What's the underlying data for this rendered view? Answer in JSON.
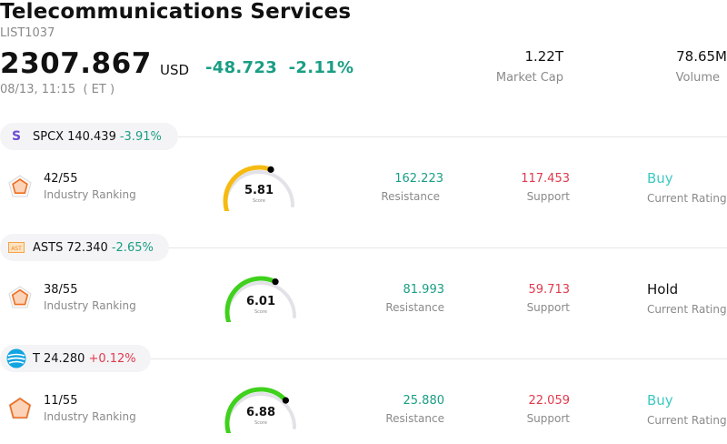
{
  "header": {
    "title": "Telecommunications Services",
    "code": "LIST1037",
    "price": "2307.867",
    "currency": "USD",
    "change": "-48.723",
    "change_pct": "-2.11%",
    "time": "08/13, 11:15  ( ET )",
    "market_cap_value": "1.22T",
    "market_cap_label": "Market Cap",
    "volume_value": "78.65M",
    "volume_label": "Volume"
  },
  "colors": {
    "down": "#1a9e84",
    "up": "#e03a4e",
    "buy": "#3ec9c2",
    "gauge_track": "#e2e2e8"
  },
  "stocks": [
    {
      "ticker": "SPCX",
      "price": "140.439",
      "change": "-3.91%",
      "direction": "down",
      "logo": "spcx-s-logo",
      "logo_text": "S",
      "ranking": "42/55",
      "ranking_label": "Industry Ranking",
      "score": "5.81",
      "score_label": "Score",
      "score_color": "#f5bb12",
      "resistance": "162.223",
      "resistance_label": "Resistance",
      "support": "117.453",
      "support_label": "Support",
      "rating": "Buy",
      "rating_label": "Current Rating",
      "rating_color": "#3ec9c2"
    },
    {
      "ticker": "ASTS",
      "price": "72.340",
      "change": "-2.65%",
      "direction": "down",
      "logo": "asts-logo",
      "logo_text": "AST",
      "ranking": "38/55",
      "ranking_label": "Industry Ranking",
      "score": "6.01",
      "score_label": "Score",
      "score_color": "#3fd11c",
      "resistance": "81.993",
      "resistance_label": "Resistance",
      "support": "59.713",
      "support_label": "Support",
      "rating": "Hold",
      "rating_label": "Current Rating",
      "rating_color": "#111111"
    },
    {
      "ticker": "T",
      "price": "24.280",
      "change": "+0.12%",
      "direction": "up",
      "logo": "att-globe-logo",
      "logo_text": "",
      "ranking": "11/55",
      "ranking_label": "Industry Ranking",
      "score": "6.88",
      "score_label": "Score",
      "score_color": "#3fd11c",
      "resistance": "25.880",
      "resistance_label": "Resistance",
      "support": "22.059",
      "support_label": "Support",
      "rating": "Buy",
      "rating_label": "Current Rating",
      "rating_color": "#3ec9c2"
    }
  ]
}
